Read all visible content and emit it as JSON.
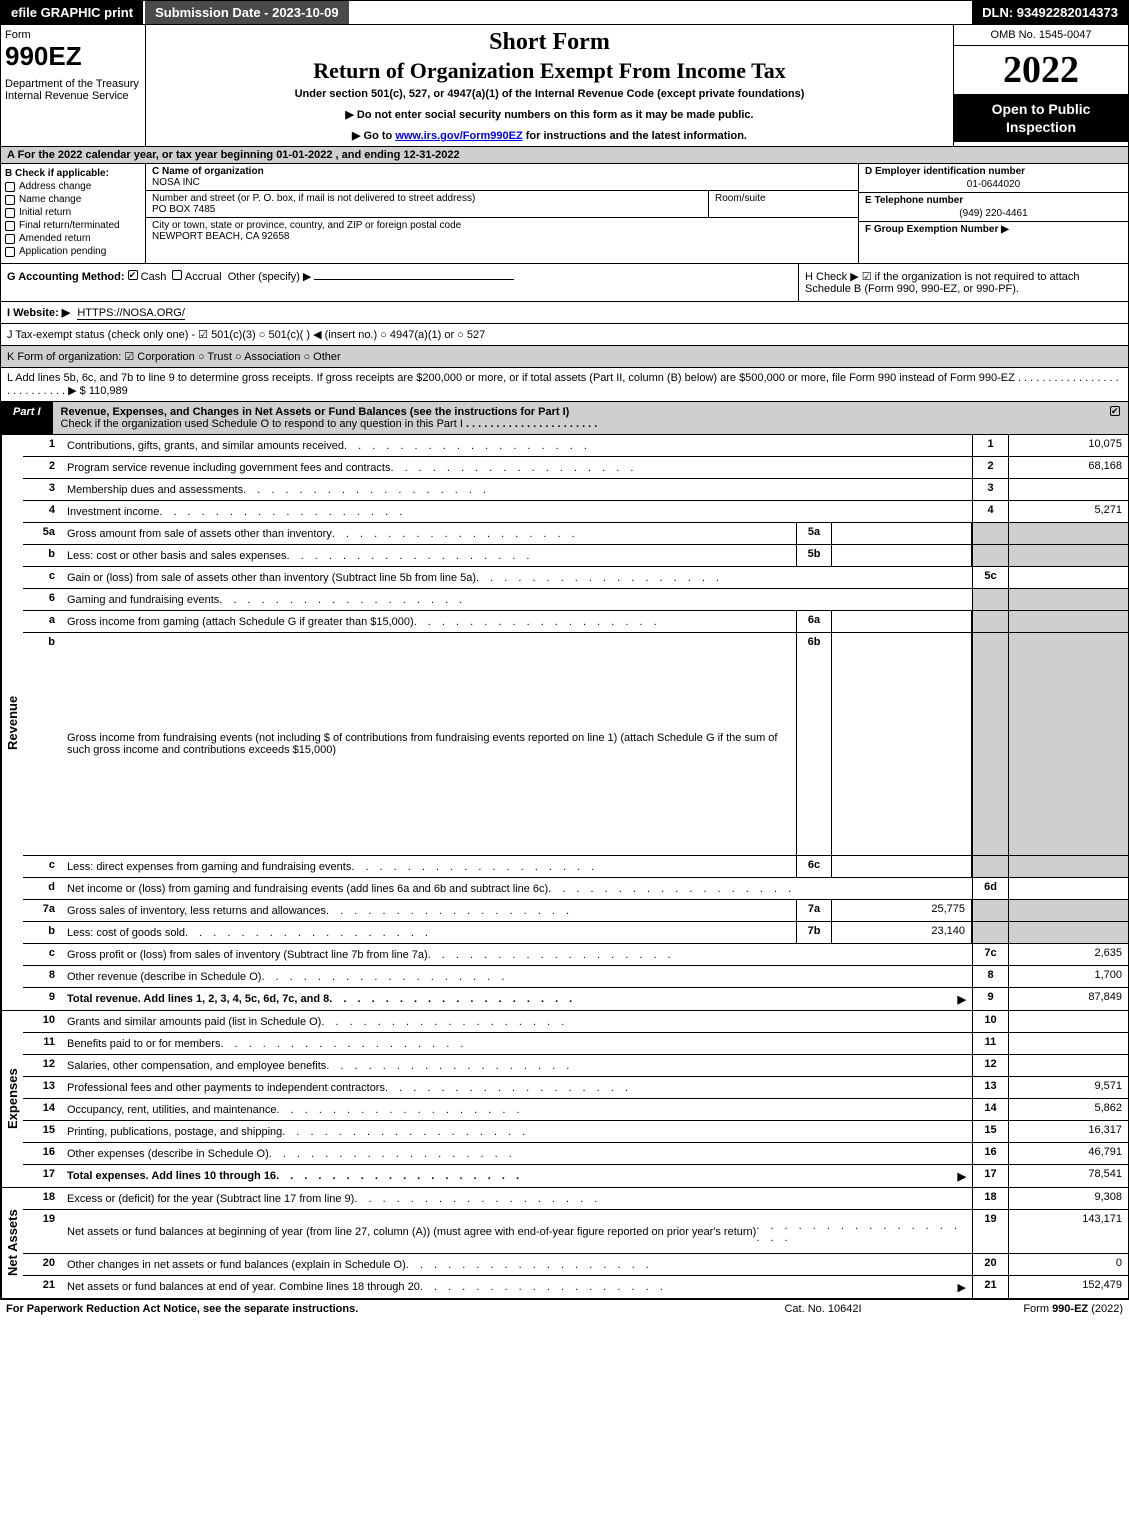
{
  "topbar": {
    "efile": "efile GRAPHIC print",
    "submission": "Submission Date - 2023-10-09",
    "dln": "DLN: 93492282014373"
  },
  "header": {
    "form_label": "Form",
    "form_number": "990EZ",
    "department": "Department of the Treasury\nInternal Revenue Service",
    "title1": "Short Form",
    "title2": "Return of Organization Exempt From Income Tax",
    "subtitle": "Under section 501(c), 527, or 4947(a)(1) of the Internal Revenue Code (except private foundations)",
    "note1": "▶ Do not enter social security numbers on this form as it may be made public.",
    "note2_pre": "▶ Go to ",
    "note2_link": "www.irs.gov/Form990EZ",
    "note2_post": " for instructions and the latest information.",
    "omb": "OMB No. 1545-0047",
    "year": "2022",
    "openbox": "Open to Public Inspection"
  },
  "section_a": "A  For the 2022 calendar year, or tax year beginning 01-01-2022 , and ending 12-31-2022",
  "box_b": {
    "header": "B  Check if applicable:",
    "items": [
      {
        "label": "Address change",
        "checked": false
      },
      {
        "label": "Name change",
        "checked": false
      },
      {
        "label": "Initial return",
        "checked": false
      },
      {
        "label": "Final return/terminated",
        "checked": false
      },
      {
        "label": "Amended return",
        "checked": false
      },
      {
        "label": "Application pending",
        "checked": false
      }
    ]
  },
  "box_c": {
    "c_label": "C Name of organization",
    "org_name": "NOSA INC",
    "addr_label": "Number and street (or P. O. box, if mail is not delivered to street address)",
    "addr": "PO BOX 7485",
    "room_label": "Room/suite",
    "city_label": "City or town, state or province, country, and ZIP or foreign postal code",
    "city": "NEWPORT BEACH, CA  92658"
  },
  "box_d": {
    "d_label": "D Employer identification number",
    "ein": "01-0644020",
    "e_label": "E Telephone number",
    "phone": "(949) 220-4461",
    "f_label": "F Group Exemption Number  ▶"
  },
  "box_g": {
    "g_label": "G Accounting Method:",
    "cash": "Cash",
    "accrual": "Accrual",
    "other": "Other (specify) ▶"
  },
  "box_h": "H  Check ▶ ☑ if the organization is not required to attach Schedule B (Form 990, 990-EZ, or 990-PF).",
  "box_i": {
    "label": "I Website: ▶",
    "value": "HTTPS://NOSA.ORG/"
  },
  "box_j": "J Tax-exempt status (check only one) - ☑ 501(c)(3)  ○ 501(c)(  ) ◀ (insert no.)  ○ 4947(a)(1) or  ○ 527",
  "box_k": "K Form of organization:  ☑ Corporation  ○ Trust  ○ Association  ○ Other",
  "box_l": {
    "text": "L Add lines 5b, 6c, and 7b to line 9 to determine gross receipts. If gross receipts are $200,000 or more, or if total assets (Part II, column (B) below) are $500,000 or more, file Form 990 instead of Form 990-EZ",
    "amount": "▶ $ 110,989"
  },
  "part1": {
    "tab": "Part I",
    "title": "Revenue, Expenses, and Changes in Net Assets or Fund Balances (see the instructions for Part I)",
    "subtitle": "Check if the organization used Schedule O to respond to any question in this Part I"
  },
  "revenue": {
    "label": "Revenue",
    "rows": [
      {
        "num": "1",
        "desc": "Contributions, gifts, grants, and similar amounts received",
        "rnum": "1",
        "rval": "10,075"
      },
      {
        "num": "2",
        "desc": "Program service revenue including government fees and contracts",
        "rnum": "2",
        "rval": "68,168"
      },
      {
        "num": "3",
        "desc": "Membership dues and assessments",
        "rnum": "3",
        "rval": ""
      },
      {
        "num": "4",
        "desc": "Investment income",
        "rnum": "4",
        "rval": "5,271"
      },
      {
        "num": "5a",
        "desc": "Gross amount from sale of assets other than inventory",
        "midnum": "5a",
        "midval": "",
        "shaded": true
      },
      {
        "num": "b",
        "desc": "Less: cost or other basis and sales expenses",
        "midnum": "5b",
        "midval": "",
        "shaded": true
      },
      {
        "num": "c",
        "desc": "Gain or (loss) from sale of assets other than inventory (Subtract line 5b from line 5a)",
        "rnum": "5c",
        "rval": ""
      },
      {
        "num": "6",
        "desc": "Gaming and fundraising events",
        "shaded": true,
        "noright": true
      },
      {
        "num": "a",
        "desc": "Gross income from gaming (attach Schedule G if greater than $15,000)",
        "midnum": "6a",
        "midval": "",
        "shaded": true
      },
      {
        "num": "b",
        "desc": "Gross income from fundraising events (not including $                    of contributions from fundraising events reported on line 1) (attach Schedule G if the sum of such gross income and contributions exceeds $15,000)",
        "midnum": "6b",
        "midval": "",
        "shaded": true,
        "tall": true
      },
      {
        "num": "c",
        "desc": "Less: direct expenses from gaming and fundraising events",
        "midnum": "6c",
        "midval": "",
        "shaded": true
      },
      {
        "num": "d",
        "desc": "Net income or (loss) from gaming and fundraising events (add lines 6a and 6b and subtract line 6c)",
        "rnum": "6d",
        "rval": ""
      },
      {
        "num": "7a",
        "desc": "Gross sales of inventory, less returns and allowances",
        "midnum": "7a",
        "midval": "25,775",
        "shaded": true
      },
      {
        "num": "b",
        "desc": "Less: cost of goods sold",
        "midnum": "7b",
        "midval": "23,140",
        "shaded": true
      },
      {
        "num": "c",
        "desc": "Gross profit or (loss) from sales of inventory (Subtract line 7b from line 7a)",
        "rnum": "7c",
        "rval": "2,635"
      },
      {
        "num": "8",
        "desc": "Other revenue (describe in Schedule O)",
        "rnum": "8",
        "rval": "1,700"
      },
      {
        "num": "9",
        "desc": "Total revenue. Add lines 1, 2, 3, 4, 5c, 6d, 7c, and 8",
        "rnum": "9",
        "rval": "87,849",
        "bold": true,
        "arrow": true
      }
    ]
  },
  "expenses": {
    "label": "Expenses",
    "rows": [
      {
        "num": "10",
        "desc": "Grants and similar amounts paid (list in Schedule O)",
        "rnum": "10",
        "rval": ""
      },
      {
        "num": "11",
        "desc": "Benefits paid to or for members",
        "rnum": "11",
        "rval": ""
      },
      {
        "num": "12",
        "desc": "Salaries, other compensation, and employee benefits",
        "rnum": "12",
        "rval": ""
      },
      {
        "num": "13",
        "desc": "Professional fees and other payments to independent contractors",
        "rnum": "13",
        "rval": "9,571"
      },
      {
        "num": "14",
        "desc": "Occupancy, rent, utilities, and maintenance",
        "rnum": "14",
        "rval": "5,862"
      },
      {
        "num": "15",
        "desc": "Printing, publications, postage, and shipping",
        "rnum": "15",
        "rval": "16,317"
      },
      {
        "num": "16",
        "desc": "Other expenses (describe in Schedule O)",
        "rnum": "16",
        "rval": "46,791"
      },
      {
        "num": "17",
        "desc": "Total expenses. Add lines 10 through 16",
        "rnum": "17",
        "rval": "78,541",
        "bold": true,
        "arrow": true
      }
    ]
  },
  "netassets": {
    "label": "Net Assets",
    "rows": [
      {
        "num": "18",
        "desc": "Excess or (deficit) for the year (Subtract line 17 from line 9)",
        "rnum": "18",
        "rval": "9,308"
      },
      {
        "num": "19",
        "desc": "Net assets or fund balances at beginning of year (from line 27, column (A)) (must agree with end-of-year figure reported on prior year's return)",
        "rnum": "19",
        "rval": "143,171",
        "tall": true
      },
      {
        "num": "20",
        "desc": "Other changes in net assets or fund balances (explain in Schedule O)",
        "rnum": "20",
        "rval": "0"
      },
      {
        "num": "21",
        "desc": "Net assets or fund balances at end of year. Combine lines 18 through 20",
        "rnum": "21",
        "rval": "152,479",
        "arrow": true
      }
    ]
  },
  "footer": {
    "left": "For Paperwork Reduction Act Notice, see the separate instructions.",
    "mid": "Cat. No. 10642I",
    "right": "Form 990-EZ (2022)"
  },
  "colors": {
    "black": "#000000",
    "white": "#ffffff",
    "gray_bg": "#cfcfcf",
    "darkgray": "#4a4a4a",
    "link": "#0000ee"
  }
}
